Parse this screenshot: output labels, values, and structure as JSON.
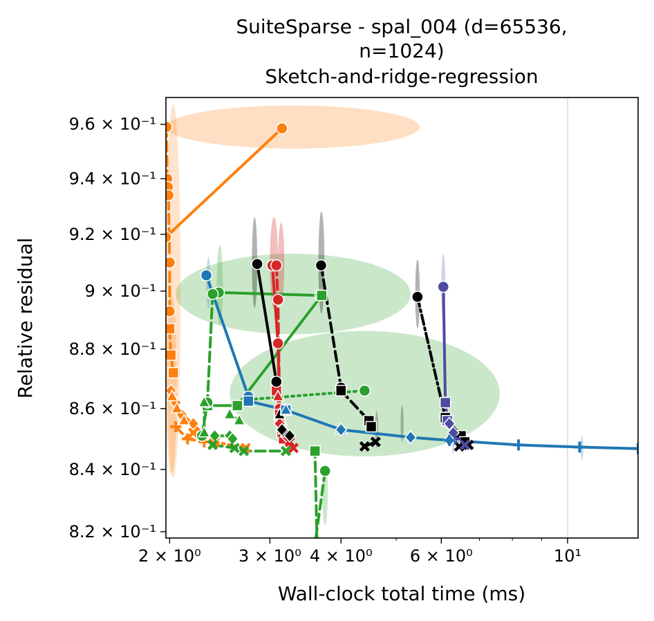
{
  "chart_data": {
    "type": "line",
    "title_lines": [
      "SuiteSparse - spal_004 (d=65536,",
      "n=1024)",
      "Sketch-and-ridge-regression"
    ],
    "xlabel": "Wall-clock total time (ms)",
    "ylabel": "Relative residual",
    "x_scale": "log",
    "y_scale": "log",
    "xlim": [
      1.97,
      13.3
    ],
    "ylim": [
      0.818,
      0.97
    ],
    "grid": false,
    "x_ticks": [
      {
        "value": 2,
        "label": "2 × 10⁰"
      },
      {
        "value": 3,
        "label": "3 × 10⁰"
      },
      {
        "value": 4,
        "label": "4 × 10⁰"
      },
      {
        "value": 6,
        "label": "6 × 10⁰"
      },
      {
        "value": 10,
        "label": "10¹"
      }
    ],
    "y_ticks": [
      {
        "value": 0.82,
        "label": "8.2 × 10⁻¹"
      },
      {
        "value": 0.84,
        "label": "8.4 × 10⁻¹"
      },
      {
        "value": 0.86,
        "label": "8.6 × 10⁻¹"
      },
      {
        "value": 0.88,
        "label": "8.8 × 10⁻¹"
      },
      {
        "value": 0.9,
        "label": "9 × 10⁻¹"
      },
      {
        "value": 0.92,
        "label": "9.2 × 10⁻¹"
      },
      {
        "value": 0.94,
        "label": "9.4 × 10⁻¹"
      },
      {
        "value": 0.96,
        "label": "9.6 × 10⁻¹"
      }
    ],
    "vertical_reference_line": 10,
    "ellipses": [
      {
        "cx": 3.15,
        "cy": 0.959,
        "rx_lo": 1.97,
        "rx_hi": 5.5,
        "ry": 0.008,
        "color": "#ff7f0e",
        "opacity": 0.25
      },
      {
        "cx": 3.3,
        "cy": 0.899,
        "rx_lo": 2.05,
        "rx_hi": 5.3,
        "ry": 0.014,
        "color": "#2ca02c",
        "opacity": 0.25
      },
      {
        "cx": 4.4,
        "cy": 0.865,
        "rx_lo": 2.55,
        "rx_hi": 7.6,
        "ry": 0.021,
        "color": "#2ca02c",
        "opacity": 0.25
      },
      {
        "cx": 2.02,
        "cy": 0.9,
        "rx_lo": 1.97,
        "rx_hi": 2.09,
        "ry": 0.065,
        "color": "#ff7f0e",
        "opacity": 0.22
      },
      {
        "cx": 2.0,
        "cy": 0.868,
        "rx_lo": 1.97,
        "rx_hi": 2.06,
        "ry": 0.03,
        "color": "#ff7f0e",
        "opacity": 0.25
      },
      {
        "cx": 2.82,
        "cy": 0.91,
        "rx_lo": 2.79,
        "rx_hi": 2.85,
        "ry": 0.016,
        "color": "#000000",
        "opacity": 0.3
      },
      {
        "cx": 3.69,
        "cy": 0.91,
        "rx_lo": 3.65,
        "rx_hi": 3.74,
        "ry": 0.018,
        "color": "#000000",
        "opacity": 0.3
      },
      {
        "cx": 5.45,
        "cy": 0.899,
        "rx_lo": 5.4,
        "rx_hi": 5.5,
        "ry": 0.012,
        "color": "#000000",
        "opacity": 0.3
      },
      {
        "cx": 3.05,
        "cy": 0.91,
        "rx_lo": 3.0,
        "rx_hi": 3.1,
        "ry": 0.016,
        "color": "#d62728",
        "opacity": 0.3
      },
      {
        "cx": 3.14,
        "cy": 0.91,
        "rx_lo": 3.1,
        "rx_hi": 3.18,
        "ry": 0.014,
        "color": "#d62728",
        "opacity": 0.3
      },
      {
        "cx": 2.45,
        "cy": 0.902,
        "rx_lo": 2.42,
        "rx_hi": 2.48,
        "ry": 0.014,
        "color": "#2ca02c",
        "opacity": 0.25
      },
      {
        "cx": 3.75,
        "cy": 0.832,
        "rx_lo": 3.71,
        "rx_hi": 3.79,
        "ry": 0.01,
        "color": "#2ca02c",
        "opacity": 0.25
      },
      {
        "cx": 2.34,
        "cy": 0.903,
        "rx_lo": 2.32,
        "rx_hi": 2.36,
        "ry": 0.009,
        "color": "#1f77b4",
        "opacity": 0.25
      },
      {
        "cx": 6.05,
        "cy": 0.901,
        "rx_lo": 6.0,
        "rx_hi": 6.1,
        "ry": 0.012,
        "color": "#4e4ba0",
        "opacity": 0.25
      },
      {
        "cx": 5.12,
        "cy": 0.855,
        "rx_lo": 5.09,
        "rx_hi": 5.15,
        "ry": 0.006,
        "color": "#000000",
        "opacity": 0.25
      },
      {
        "cx": 4.62,
        "cy": 0.853,
        "rx_lo": 4.59,
        "rx_hi": 4.65,
        "ry": 0.006,
        "color": "#000000",
        "opacity": 0.25
      },
      {
        "cx": 6.3,
        "cy": 0.849,
        "rx_lo": 6.27,
        "rx_hi": 6.33,
        "ry": 0.004,
        "color": "#1f77b4",
        "opacity": 0.3
      },
      {
        "cx": 10.6,
        "cy": 0.847,
        "rx_lo": 10.55,
        "rx_hi": 10.65,
        "ry": 0.004,
        "color": "#1f77b4",
        "opacity": 0.3
      }
    ],
    "series": [
      {
        "color": "#ff7f0e",
        "dash": "solid",
        "marker": "circle",
        "points": [
          [
            1.97,
            0.919
          ],
          [
            3.15,
            0.9585
          ]
        ]
      },
      {
        "color": "#ff7f0e",
        "dash": "dashed",
        "marker": "circle",
        "points": [
          [
            1.975,
            0.959
          ],
          [
            1.98,
            0.94
          ],
          [
            1.985,
            0.937
          ],
          [
            1.99,
            0.934
          ],
          [
            2.0,
            0.91
          ],
          [
            2.0,
            0.893
          ]
        ]
      },
      {
        "color": "#ff7f0e",
        "dash": "dashed",
        "marker": "square",
        "points": [
          [
            2.0,
            0.887
          ],
          [
            2.01,
            0.878
          ],
          [
            2.03,
            0.872
          ]
        ]
      },
      {
        "color": "#ff7f0e",
        "dash": "dashed",
        "marker": "diamond",
        "points": [
          [
            2.01,
            0.866
          ],
          [
            2.05,
            0.862
          ],
          [
            2.1,
            0.858
          ],
          [
            2.2,
            0.855
          ],
          [
            2.3,
            0.851
          ]
        ]
      },
      {
        "color": "#ff7f0e",
        "dash": "dashed",
        "marker": "triangle",
        "points": [
          [
            2.02,
            0.864
          ],
          [
            2.06,
            0.86
          ],
          [
            2.12,
            0.856
          ]
        ]
      },
      {
        "color": "#ff7f0e",
        "dash": "dashed",
        "marker": "plus",
        "points": [
          [
            2.05,
            0.854
          ],
          [
            2.15,
            0.85
          ],
          [
            2.3,
            0.849
          ]
        ]
      },
      {
        "color": "#ff7f0e",
        "dash": "dotted",
        "marker": "x",
        "points": [
          [
            2.2,
            0.852
          ],
          [
            2.4,
            0.849
          ],
          [
            2.72,
            0.847
          ]
        ]
      },
      {
        "color": "#2ca02c",
        "dash": "solid",
        "marker": "circle",
        "points": [
          [
            2.44,
            0.8995
          ],
          [
            3.68,
            0.8985
          ]
        ]
      },
      {
        "color": "#2ca02c",
        "dash": "solid",
        "marker": "square",
        "points": [
          [
            2.33,
            0.861
          ],
          [
            2.63,
            0.861
          ],
          [
            3.7,
            0.8985
          ]
        ]
      },
      {
        "color": "#2ca02c",
        "dash": "dashed",
        "marker": "circle",
        "points": [
          [
            2.38,
            0.899
          ],
          [
            2.33,
            0.862
          ],
          [
            2.28,
            0.851
          ]
        ]
      },
      {
        "color": "#2ca02c",
        "dash": "dotted",
        "marker": "circle",
        "points": [
          [
            2.75,
            0.863
          ],
          [
            4.4,
            0.866
          ]
        ]
      },
      {
        "color": "#2ca02c",
        "dash": "dashed",
        "marker": "circle",
        "points": [
          [
            3.75,
            0.8395
          ],
          [
            3.6,
            0.816
          ]
        ]
      },
      {
        "color": "#2ca02c",
        "dash": "dashed",
        "marker": "square",
        "points": [
          [
            3.63,
            0.816
          ],
          [
            3.6,
            0.846
          ]
        ]
      },
      {
        "color": "#2ca02c",
        "dash": "dashed",
        "marker": "triangle",
        "points": [
          [
            2.3,
            0.862
          ],
          [
            2.3,
            0.852
          ]
        ]
      },
      {
        "color": "#2ca02c",
        "dash": "dashed",
        "marker": "triangle",
        "points": [
          [
            2.55,
            0.858
          ],
          [
            2.65,
            0.856
          ]
        ]
      },
      {
        "color": "#2ca02c",
        "dash": "dashed",
        "marker": "diamond",
        "points": [
          [
            2.4,
            0.851
          ],
          [
            2.55,
            0.851
          ],
          [
            2.58,
            0.85
          ]
        ]
      },
      {
        "color": "#2ca02c",
        "dash": "dashed",
        "marker": "x",
        "points": [
          [
            2.38,
            0.848
          ],
          [
            2.6,
            0.847
          ],
          [
            2.7,
            0.846
          ],
          [
            3.2,
            0.846
          ]
        ]
      },
      {
        "color": "#d62728",
        "dash": "solid",
        "marker": "circle",
        "points": [
          [
            3.03,
            0.909
          ],
          [
            3.1,
            0.882
          ],
          [
            3.12,
            0.858
          ]
        ]
      },
      {
        "color": "#d62728",
        "dash": "dashed",
        "marker": "circle",
        "points": [
          [
            3.08,
            0.909
          ],
          [
            3.1,
            0.897
          ],
          [
            3.12,
            0.86
          ]
        ]
      },
      {
        "color": "#d62728",
        "dash": "dashdot",
        "marker": "square",
        "points": [
          [
            3.08,
            0.866
          ],
          [
            3.12,
            0.858
          ],
          [
            3.15,
            0.852
          ],
          [
            3.17,
            0.85
          ]
        ]
      },
      {
        "color": "#d62728",
        "dash": "dashed",
        "marker": "triangle",
        "points": [
          [
            3.1,
            0.864
          ],
          [
            3.14,
            0.856
          ]
        ]
      },
      {
        "color": "#d62728",
        "dash": "dashed",
        "marker": "diamond",
        "points": [
          [
            3.12,
            0.855
          ],
          [
            3.15,
            0.853
          ],
          [
            3.2,
            0.851
          ]
        ]
      },
      {
        "color": "#d62728",
        "dash": "dashed",
        "marker": "x",
        "points": [
          [
            3.16,
            0.852
          ],
          [
            3.25,
            0.849
          ],
          [
            3.3,
            0.847
          ]
        ]
      },
      {
        "color": "#000000",
        "dash": "solid",
        "marker": "circle",
        "points": [
          [
            2.85,
            0.9095
          ],
          [
            3.08,
            0.869
          ]
        ]
      },
      {
        "color": "#000000",
        "dash": "dashed",
        "marker": "circle",
        "points": [
          [
            3.69,
            0.909
          ],
          [
            4.0,
            0.867
          ]
        ]
      },
      {
        "color": "#000000",
        "dash": "dashed",
        "marker": "square",
        "points": [
          [
            4.0,
            0.866
          ],
          [
            4.48,
            0.856
          ],
          [
            4.52,
            0.854
          ]
        ]
      },
      {
        "color": "#000000",
        "dash": "dashdot",
        "marker": "circle",
        "points": [
          [
            5.45,
            0.898
          ],
          [
            6.1,
            0.857
          ]
        ]
      },
      {
        "color": "#000000",
        "dash": "solid",
        "marker": "square",
        "points": [
          [
            6.1,
            0.857
          ],
          [
            6.5,
            0.851
          ],
          [
            6.6,
            0.849
          ]
        ]
      },
      {
        "color": "#000000",
        "dash": "solid",
        "marker": "triangle",
        "points": [
          [
            3.12,
            0.858
          ],
          [
            3.2,
            0.852
          ]
        ]
      },
      {
        "color": "#000000",
        "dash": "solid",
        "marker": "diamond",
        "points": [
          [
            3.15,
            0.853
          ],
          [
            3.25,
            0.851
          ]
        ]
      },
      {
        "color": "#000000",
        "dash": "solid",
        "marker": "x",
        "points": [
          [
            4.4,
            0.8475
          ],
          [
            4.6,
            0.849
          ]
        ]
      },
      {
        "color": "#000000",
        "dash": "solid",
        "marker": "x",
        "points": [
          [
            6.45,
            0.8475
          ],
          [
            6.7,
            0.848
          ]
        ]
      },
      {
        "color": "#4e4ba0",
        "dash": "solid",
        "marker": "circle",
        "points": [
          [
            6.05,
            0.9015
          ],
          [
            6.1,
            0.862
          ]
        ]
      },
      {
        "color": "#4e4ba0",
        "dash": "solid",
        "marker": "square",
        "points": [
          [
            6.1,
            0.862
          ],
          [
            6.15,
            0.856
          ]
        ]
      },
      {
        "color": "#4e4ba0",
        "dash": "solid",
        "marker": "diamond",
        "points": [
          [
            6.2,
            0.855
          ],
          [
            6.3,
            0.852
          ]
        ]
      },
      {
        "color": "#4e4ba0",
        "dash": "solid",
        "marker": "plus",
        "points": [
          [
            6.35,
            0.85
          ]
        ]
      },
      {
        "color": "#4e4ba0",
        "dash": "solid",
        "marker": "x",
        "points": [
          [
            6.6,
            0.848
          ]
        ]
      },
      {
        "color": "#1f77b4",
        "dash": "solid",
        "marker": "circle",
        "points": [
          [
            2.32,
            0.9055
          ],
          [
            2.75,
            0.864
          ]
        ]
      },
      {
        "color": "#1f77b4",
        "dash": "solid",
        "marker": "square",
        "points": [
          [
            2.75,
            0.8625
          ],
          [
            3.2,
            0.8595
          ]
        ]
      },
      {
        "color": "#1f77b4",
        "dash": "solid",
        "marker": "triangle",
        "points": [
          [
            3.2,
            0.8595
          ],
          [
            4.0,
            0.853
          ]
        ]
      },
      {
        "color": "#1f77b4",
        "dash": "solid",
        "marker": "diamond",
        "points": [
          [
            4.0,
            0.853
          ],
          [
            5.3,
            0.8505
          ],
          [
            6.2,
            0.8495
          ]
        ]
      },
      {
        "color": "#1f77b4",
        "dash": "solid",
        "marker": "plus",
        "points": [
          [
            6.2,
            0.8495
          ],
          [
            8.2,
            0.848
          ],
          [
            10.5,
            0.8473
          ],
          [
            13.3,
            0.8468
          ]
        ]
      }
    ]
  }
}
